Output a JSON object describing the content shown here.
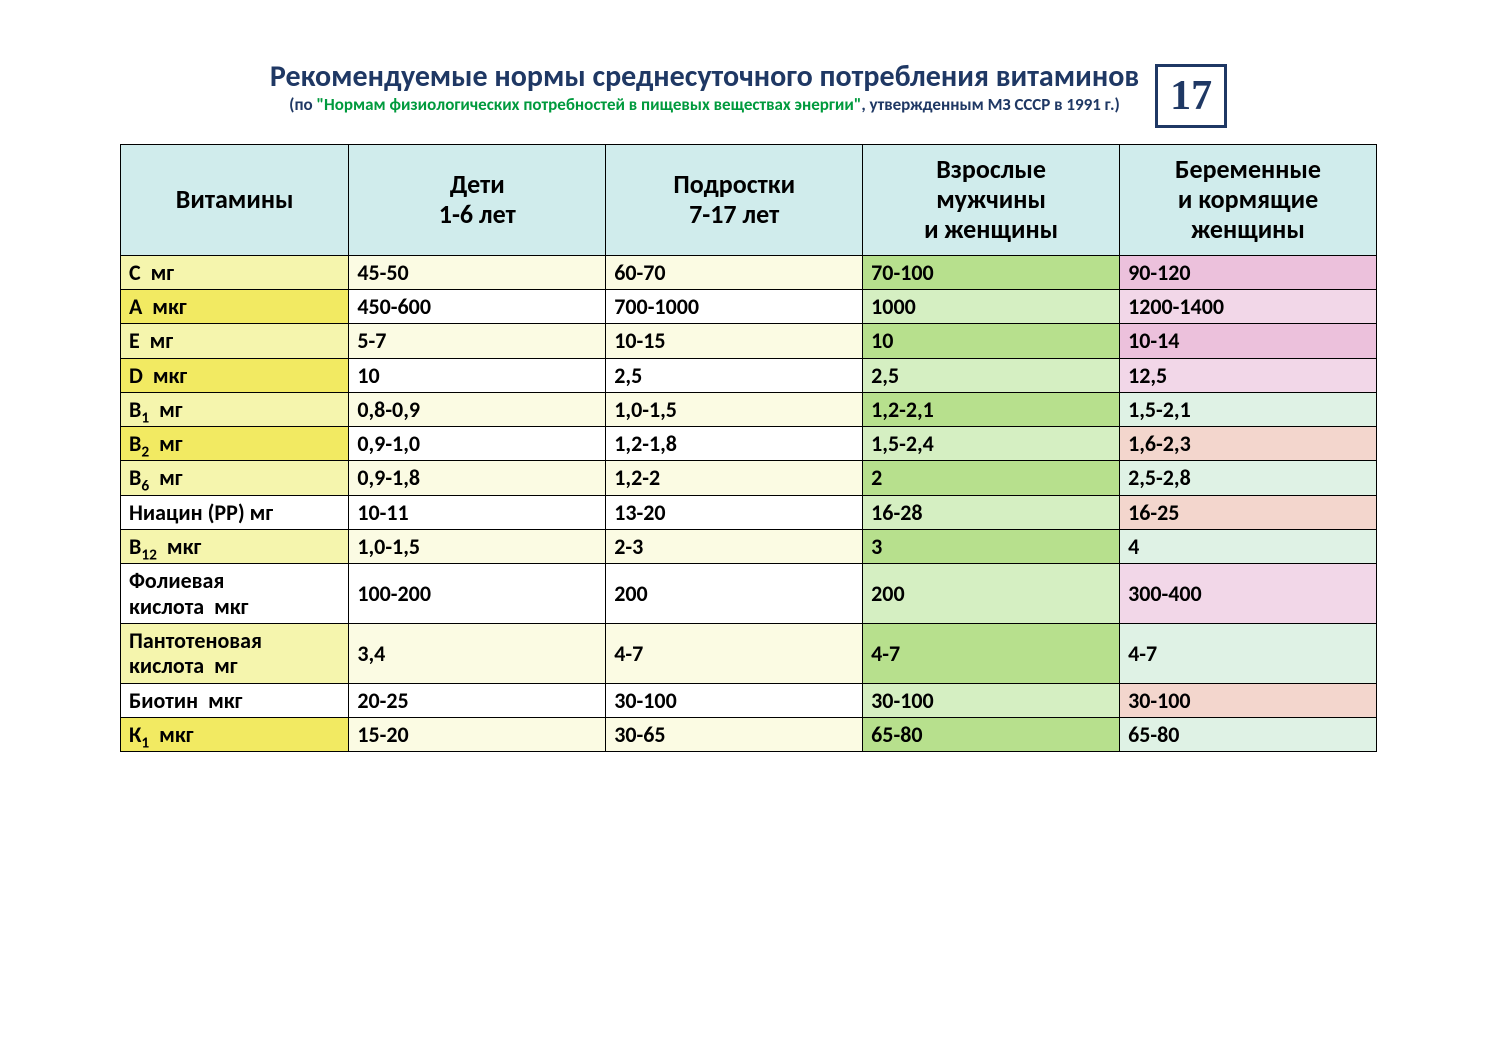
{
  "page_number": "17",
  "title": "Рекомендуемые нормы среднесуточного потребления витаминов",
  "subtitle_prefix": "(по ",
  "subtitle_green": "\"Нормам физиологических потребностей в пищевых веществах энергии\"",
  "subtitle_suffix": ", утвержденным МЗ СССР в 1991 г.)",
  "colors": {
    "title_text": "#1f3864",
    "subtitle_green": "#009a3d",
    "border": "#000000",
    "header_bg": "#d0ecec",
    "col0_pale_yellow": "#f5f5ad",
    "col0_bright_yellow": "#f2ea62",
    "col0_white": "#ffffff",
    "cream": "#fbfbe3",
    "white": "#ffffff",
    "green_light": "#d5efc2",
    "green_strong": "#b7e08d",
    "pink_light": "#f2d7e8",
    "pink_strong": "#ecc1dc",
    "mint": "#dff2e5",
    "salmon": "#f3d6cd"
  },
  "columns": [
    "Витамины",
    "Дети\n1-6 лет",
    "Подростки\n7-17 лет",
    "Взрослые\nмужчины\nи женщины",
    "Беременные\nи кормящие\nженщины"
  ],
  "rows": [
    {
      "label_html": "C  мг",
      "cells": [
        "45-50",
        "60-70",
        "70-100",
        "90-120"
      ],
      "c0": "col0_pale_yellow",
      "c1": "cream",
      "c2": "cream",
      "c3": "green_strong",
      "c4": "pink_strong"
    },
    {
      "label_html": "A  мкг",
      "cells": [
        "450-600",
        "700-1000",
        "1000",
        "1200-1400"
      ],
      "c0": "col0_bright_yellow",
      "c1": "white",
      "c2": "white",
      "c3": "green_light",
      "c4": "pink_light"
    },
    {
      "label_html": "E  мг",
      "cells": [
        "5-7",
        "10-15",
        "10",
        "10-14"
      ],
      "c0": "col0_pale_yellow",
      "c1": "cream",
      "c2": "cream",
      "c3": "green_strong",
      "c4": "pink_strong"
    },
    {
      "label_html": "D  мкг",
      "cells": [
        "10",
        "2,5",
        "2,5",
        "12,5"
      ],
      "c0": "col0_bright_yellow",
      "c1": "white",
      "c2": "white",
      "c3": "green_light",
      "c4": "pink_light"
    },
    {
      "label_html": "B<span class=\"sub\">1</span>  мг",
      "cells": [
        "0,8-0,9",
        "1,0-1,5",
        "1,2-2,1",
        "1,5-2,1"
      ],
      "c0": "col0_pale_yellow",
      "c1": "cream",
      "c2": "cream",
      "c3": "green_strong",
      "c4": "mint"
    },
    {
      "label_html": "B<span class=\"sub\">2</span>  мг",
      "cells": [
        "0,9-1,0",
        "1,2-1,8",
        "1,5-2,4",
        "1,6-2,3"
      ],
      "c0": "col0_bright_yellow",
      "c1": "white",
      "c2": "white",
      "c3": "green_light",
      "c4": "salmon"
    },
    {
      "label_html": "B<span class=\"sub\">6</span>  мг",
      "cells": [
        "0,9-1,8",
        "1,2-2",
        "2",
        "2,5-2,8"
      ],
      "c0": "col0_pale_yellow",
      "c1": "cream",
      "c2": "cream",
      "c3": "green_strong",
      "c4": "mint"
    },
    {
      "label_html": "Ниацин (РР) мг",
      "cells": [
        "10-11",
        "13-20",
        "16-28",
        "16-25"
      ],
      "c0": "col0_white",
      "c1": "white",
      "c2": "white",
      "c3": "green_light",
      "c4": "salmon"
    },
    {
      "label_html": "B<span class=\"sub\">12</span>  мкг",
      "cells": [
        "1,0-1,5",
        "2-3",
        "3",
        "4"
      ],
      "c0": "col0_pale_yellow",
      "c1": "cream",
      "c2": "cream",
      "c3": "green_strong",
      "c4": "mint"
    },
    {
      "label_html": "Фолиевая кислота  мкг",
      "cells": [
        "100-200",
        "200",
        "200",
        "300-400"
      ],
      "c0": "col0_white",
      "c1": "white",
      "c2": "white",
      "c3": "green_light",
      "c4": "pink_light"
    },
    {
      "label_html": "Пантотеновая кислота  мг",
      "cells": [
        "3,4",
        "4-7",
        "4-7",
        "4-7"
      ],
      "c0": "col0_pale_yellow",
      "c1": "cream",
      "c2": "cream",
      "c3": "green_strong",
      "c4": "mint"
    },
    {
      "label_html": "Биотин  мкг",
      "cells": [
        "20-25",
        "30-100",
        "30-100",
        "30-100"
      ],
      "c0": "col0_white",
      "c1": "white",
      "c2": "white",
      "c3": "green_light",
      "c4": "salmon"
    },
    {
      "label_html": "К<span class=\"sub\">1</span>  мкг",
      "cells": [
        "15-20",
        "30-65",
        "65-80",
        "65-80"
      ],
      "c0": "col0_bright_yellow",
      "c1": "cream",
      "c2": "cream",
      "c3": "green_strong",
      "c4": "mint"
    }
  ]
}
